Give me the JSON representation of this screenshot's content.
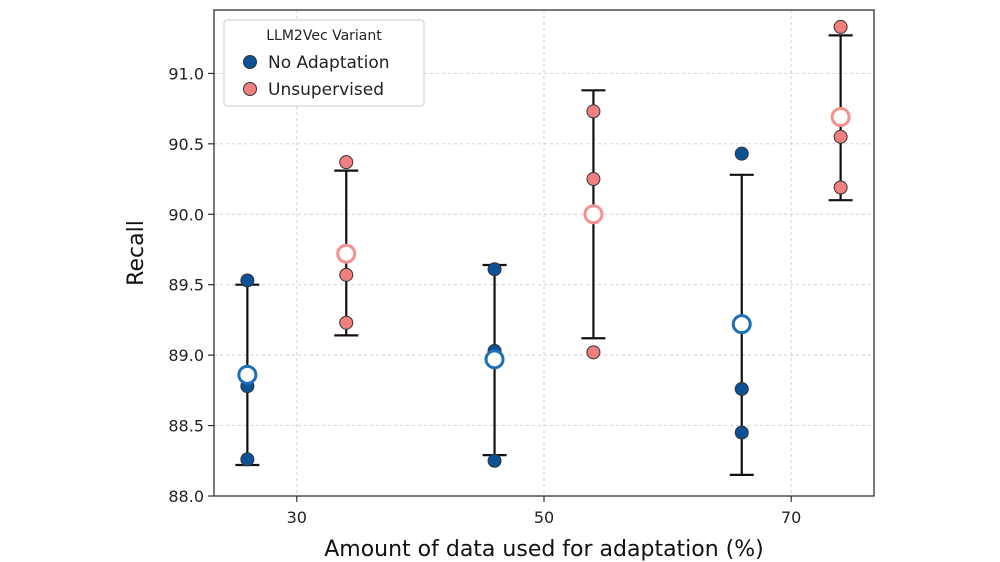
{
  "chart_data": {
    "type": "scatter",
    "title": "",
    "xlabel": "Amount of data used for adaptation (%)",
    "ylabel": "Recall",
    "xlim": [
      23.3,
      76.7
    ],
    "ylim": [
      88.0,
      91.45
    ],
    "xticks": [
      30,
      50,
      70
    ],
    "yticks": [
      88.0,
      88.5,
      89.0,
      89.5,
      90.0,
      90.5,
      91.0
    ],
    "grid": true,
    "legend": {
      "title": "LLM2Vec Variant",
      "placement": "top-left",
      "entries": [
        "No Adaptation",
        "Unsupervised"
      ]
    },
    "series": [
      {
        "name": "No Adaptation",
        "color": "#0a5196",
        "mean_color": "#1f6fb5",
        "groups": [
          {
            "x": 26,
            "points": [
              89.53,
              88.78,
              88.26
            ],
            "mean": 88.86,
            "err_low": 88.22,
            "err_high": 89.5
          },
          {
            "x": 46,
            "points": [
              89.61,
              89.03,
              88.25
            ],
            "mean": 88.97,
            "err_low": 88.29,
            "err_high": 89.64
          },
          {
            "x": 66,
            "points": [
              90.43,
              88.76,
              88.45
            ],
            "mean": 89.22,
            "err_low": 88.15,
            "err_high": 90.28
          }
        ]
      },
      {
        "name": "Unsupervised",
        "color": "#f08080",
        "mean_color": "#f4908e",
        "groups": [
          {
            "x": 34,
            "points": [
              90.37,
              89.57,
              89.23
            ],
            "mean": 89.72,
            "err_low": 89.14,
            "err_high": 90.31
          },
          {
            "x": 54,
            "points": [
              90.73,
              90.25,
              89.02
            ],
            "mean": 90.0,
            "err_low": 89.12,
            "err_high": 90.88
          },
          {
            "x": 74,
            "points": [
              91.33,
              90.55,
              90.19
            ],
            "mean": 90.69,
            "err_low": 90.1,
            "err_high": 91.27
          }
        ]
      }
    ]
  }
}
